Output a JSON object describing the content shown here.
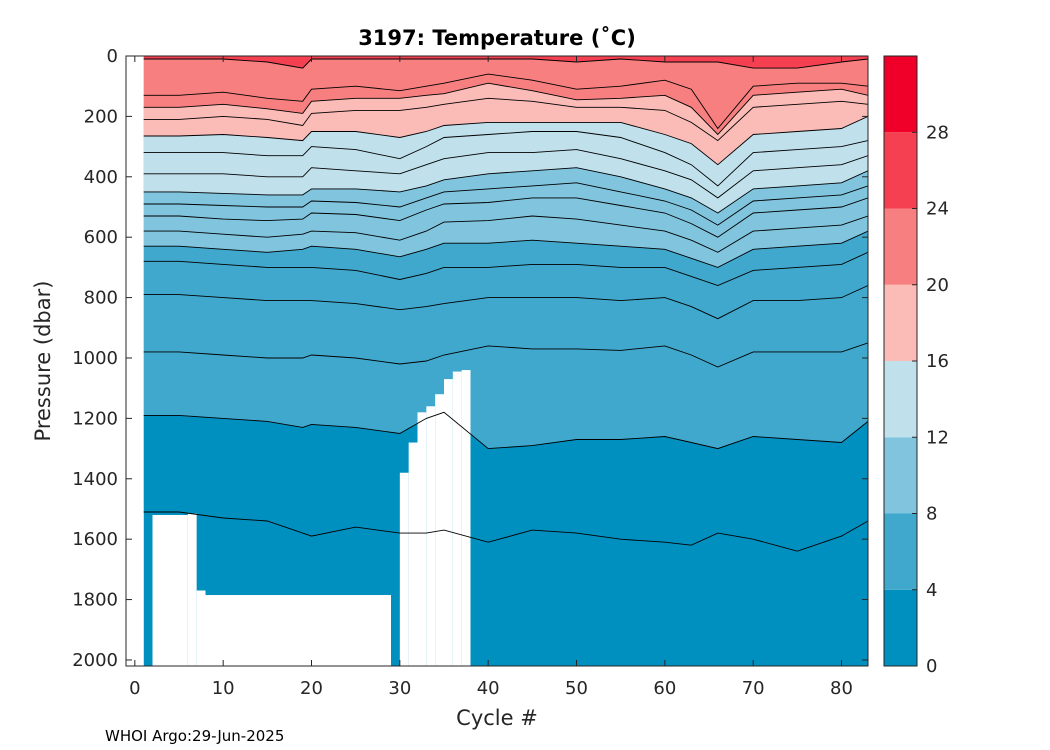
{
  "chart_data": {
    "type": "heatmap",
    "title": "3197:  Temperature (˚C)",
    "xlabel": "Cycle #",
    "ylabel": "Pressure (dbar)",
    "xlim": [
      -1,
      83
    ],
    "ylim": [
      0,
      2020
    ],
    "y_reversed": true,
    "x_ticks": [
      0,
      10,
      20,
      30,
      40,
      50,
      60,
      70,
      80
    ],
    "y_ticks": [
      0,
      200,
      400,
      600,
      800,
      1000,
      1200,
      1400,
      1600,
      1800,
      2000
    ],
    "colorbar": {
      "range": [
        0,
        32
      ],
      "ticks": [
        0,
        4,
        8,
        12,
        16,
        20,
        24,
        28
      ],
      "bands": [
        {
          "from": 0,
          "to": 4,
          "color": "#0090c0"
        },
        {
          "from": 4,
          "to": 8,
          "color": "#40a8cc"
        },
        {
          "from": 8,
          "to": 12,
          "color": "#80c4de"
        },
        {
          "from": 12,
          "to": 16,
          "color": "#c0e0ec"
        },
        {
          "from": 16,
          "to": 20,
          "color": "#fbbcb8"
        },
        {
          "from": 20,
          "to": 24,
          "color": "#f77f7f"
        },
        {
          "from": 24,
          "to": 28,
          "color": "#f44050"
        },
        {
          "from": 28,
          "to": 32,
          "color": "#f00028"
        }
      ]
    },
    "profile_depth_limits": {
      "cycles": [
        0,
        2,
        6,
        7,
        8,
        29,
        30,
        31,
        32,
        33,
        34,
        35,
        36,
        37,
        38,
        83
      ],
      "max_pressure": [
        2010,
        1520,
        1515,
        1770,
        1785,
        2010,
        1380,
        1280,
        1180,
        1160,
        1120,
        1070,
        1045,
        1040,
        2010,
        2010
      ]
    },
    "isotherm_pressures": {
      "cycles": [
        1,
        5,
        10,
        15,
        19,
        20,
        25,
        30,
        33,
        35,
        40,
        45,
        50,
        55,
        60,
        63,
        66,
        70,
        75,
        80,
        83
      ],
      "levels": [
        {
          "temp": 24,
          "values": [
            10,
            10,
            10,
            20,
            40,
            10,
            10,
            10,
            10,
            10,
            10,
            10,
            20,
            10,
            20,
            20,
            20,
            40,
            40,
            20,
            10
          ]
        },
        {
          "temp": 22,
          "values": [
            130,
            130,
            120,
            140,
            150,
            110,
            100,
            115,
            100,
            90,
            60,
            80,
            110,
            100,
            80,
            110,
            240,
            100,
            90,
            90,
            100
          ]
        },
        {
          "temp": 20,
          "values": [
            170,
            170,
            160,
            175,
            190,
            150,
            140,
            140,
            130,
            125,
            90,
            115,
            145,
            140,
            130,
            170,
            260,
            130,
            120,
            110,
            130
          ]
        },
        {
          "temp": 18,
          "values": [
            210,
            210,
            200,
            210,
            230,
            190,
            180,
            180,
            170,
            160,
            140,
            150,
            170,
            170,
            180,
            220,
            280,
            170,
            160,
            150,
            160
          ]
        },
        {
          "temp": 16,
          "values": [
            265,
            265,
            260,
            270,
            280,
            250,
            250,
            270,
            250,
            230,
            220,
            220,
            220,
            220,
            260,
            290,
            360,
            260,
            250,
            240,
            200
          ]
        },
        {
          "temp": 14,
          "values": [
            320,
            320,
            320,
            330,
            330,
            300,
            310,
            340,
            300,
            270,
            260,
            250,
            250,
            270,
            320,
            360,
            430,
            320,
            310,
            300,
            280
          ]
        },
        {
          "temp": 13,
          "values": [
            390,
            390,
            390,
            400,
            400,
            370,
            380,
            390,
            360,
            340,
            320,
            320,
            310,
            340,
            380,
            410,
            470,
            380,
            370,
            360,
            330
          ]
        },
        {
          "temp": 12,
          "values": [
            450,
            450,
            455,
            460,
            460,
            440,
            440,
            450,
            430,
            410,
            390,
            380,
            370,
            400,
            440,
            470,
            520,
            440,
            430,
            420,
            380
          ]
        },
        {
          "temp": 11,
          "values": [
            490,
            490,
            495,
            500,
            500,
            480,
            485,
            500,
            470,
            450,
            440,
            430,
            420,
            450,
            480,
            510,
            560,
            480,
            470,
            460,
            430
          ]
        },
        {
          "temp": 10,
          "values": [
            530,
            530,
            540,
            545,
            540,
            520,
            525,
            545,
            510,
            490,
            485,
            470,
            470,
            495,
            520,
            555,
            600,
            520,
            510,
            500,
            470
          ]
        },
        {
          "temp": 9,
          "values": [
            580,
            580,
            590,
            600,
            590,
            580,
            585,
            610,
            580,
            550,
            545,
            530,
            540,
            560,
            580,
            610,
            650,
            580,
            570,
            560,
            530
          ]
        },
        {
          "temp": 8,
          "values": [
            630,
            630,
            640,
            650,
            640,
            630,
            640,
            665,
            640,
            620,
            620,
            610,
            620,
            630,
            640,
            670,
            700,
            640,
            630,
            620,
            580
          ]
        },
        {
          "temp": 7,
          "values": [
            680,
            680,
            690,
            700,
            700,
            700,
            710,
            740,
            720,
            700,
            700,
            690,
            690,
            700,
            700,
            730,
            760,
            710,
            700,
            690,
            650
          ]
        },
        {
          "temp": 6,
          "values": [
            790,
            790,
            800,
            810,
            810,
            810,
            820,
            840,
            830,
            820,
            800,
            800,
            800,
            810,
            800,
            830,
            870,
            810,
            810,
            800,
            760
          ]
        },
        {
          "temp": 5,
          "values": [
            980,
            980,
            990,
            1000,
            1000,
            990,
            1000,
            1020,
            1010,
            990,
            960,
            970,
            970,
            975,
            960,
            990,
            1030,
            980,
            980,
            980,
            950
          ]
        },
        {
          "temp": 4,
          "values": [
            1190,
            1190,
            1200,
            1210,
            1230,
            1220,
            1230,
            1250,
            1200,
            1180,
            1300,
            1290,
            1270,
            1270,
            1260,
            1280,
            1300,
            1260,
            1270,
            1280,
            1210
          ]
        },
        {
          "temp": 3,
          "values": [
            1510,
            1510,
            1530,
            1540,
            1580,
            1590,
            1560,
            1580,
            1580,
            1570,
            1610,
            1570,
            1580,
            1600,
            1610,
            1620,
            1580,
            1600,
            1640,
            1590,
            1540
          ]
        }
      ]
    }
  },
  "footer": {
    "credit": "WHOI Argo:29-Jun-2025"
  }
}
